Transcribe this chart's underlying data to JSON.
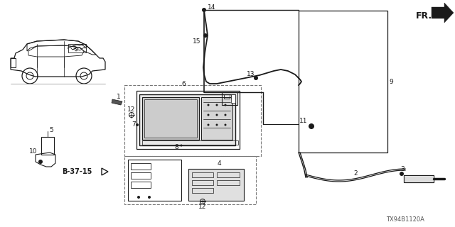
{
  "bg_color": "#ffffff",
  "lc": "#1a1a1a",
  "gray": "#888888",
  "diagram_code": "TX94B1120A",
  "fig_width": 6.4,
  "fig_height": 3.2,
  "dpi": 100
}
